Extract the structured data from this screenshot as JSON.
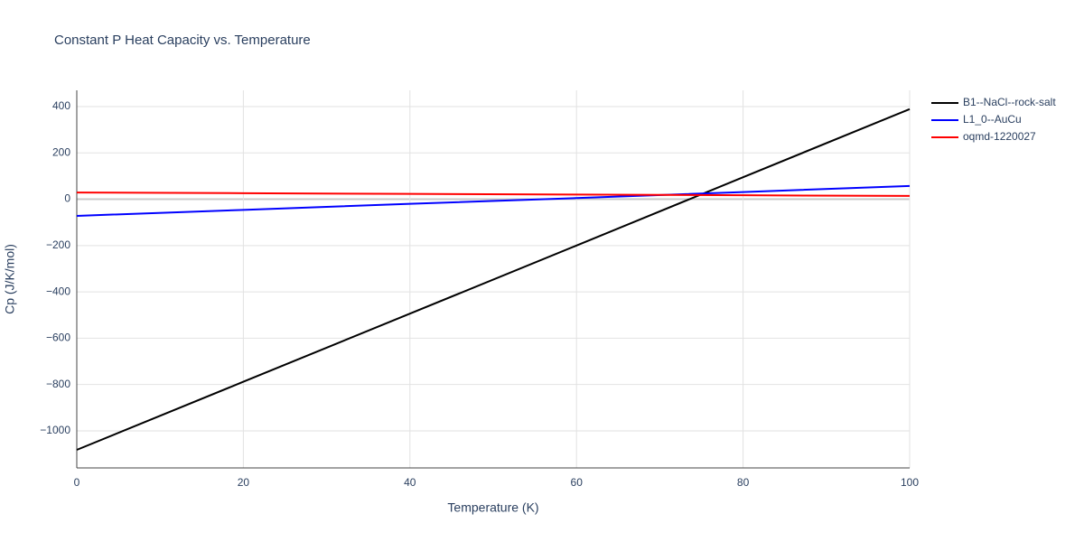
{
  "chart_data": {
    "type": "line",
    "title": "Constant P Heat Capacity vs. Temperature",
    "x_label": "Temperature (K)",
    "y_label": "Cp (J/K/mol)",
    "x": [
      0,
      20,
      40,
      60,
      80,
      100
    ],
    "series": [
      {
        "name": "B1--NaCl--rock-salt",
        "color": "#000000",
        "values": [
          -1082,
          -788,
          -494,
          -200,
          95,
          389
        ]
      },
      {
        "name": "L1_0--AuCu",
        "color": "#0000ff",
        "values": [
          -72,
          -46,
          -20,
          5,
          31,
          57
        ]
      },
      {
        "name": "oqmd-1220027",
        "color": "#ff0000",
        "values": [
          29,
          26,
          23,
          20,
          17,
          14
        ]
      }
    ],
    "xlim": [
      0,
      100
    ],
    "ylim": [
      -1160,
      470
    ],
    "xticks": [
      0,
      20,
      40,
      60,
      80,
      100
    ],
    "yticks": [
      {
        "value": -1000,
        "label": "−1000"
      },
      {
        "value": -800,
        "label": "−800"
      },
      {
        "value": -600,
        "label": "−600"
      },
      {
        "value": -400,
        "label": "−400"
      },
      {
        "value": -200,
        "label": "−200"
      },
      0,
      200,
      400
    ],
    "grid": true,
    "legend": "top-right"
  }
}
